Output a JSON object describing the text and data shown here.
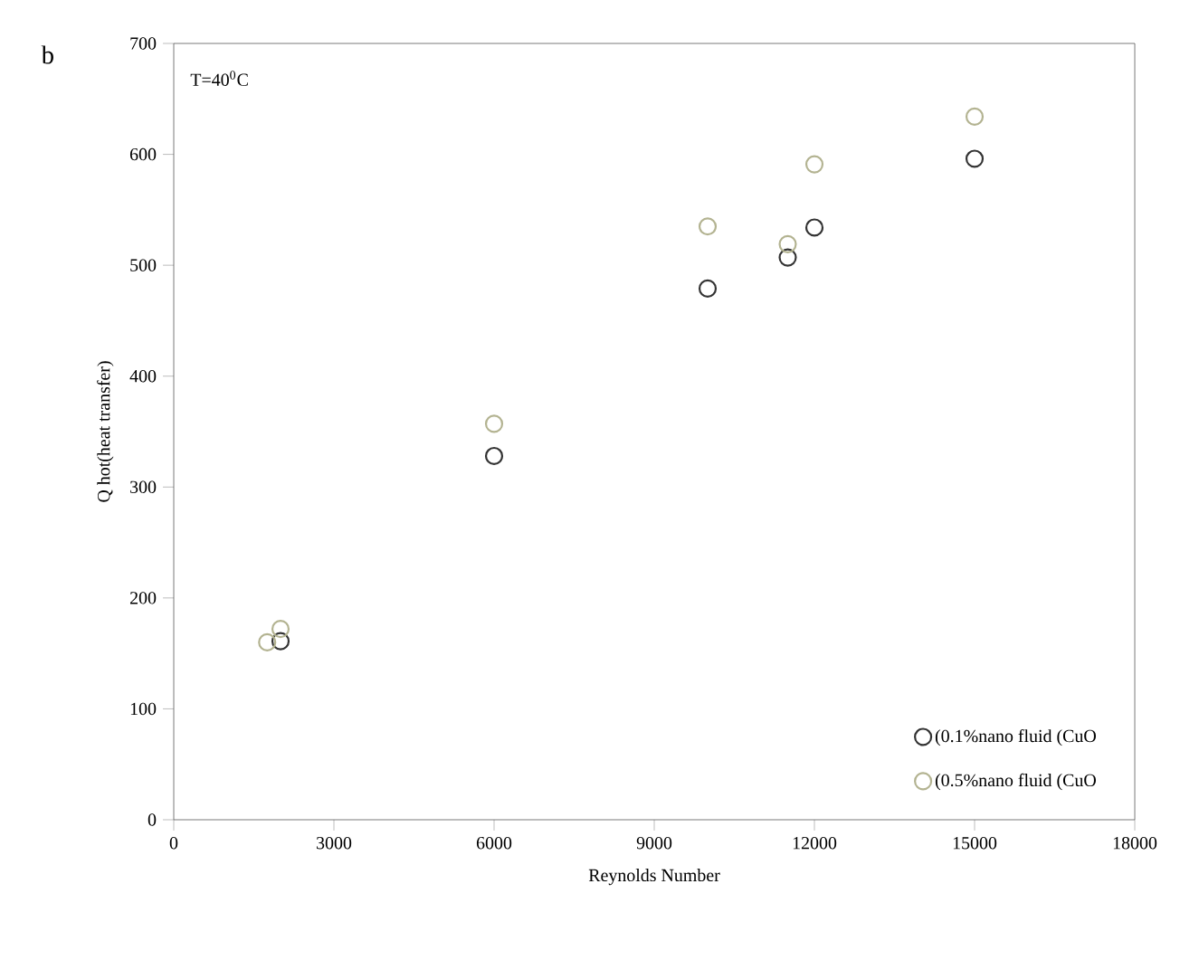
{
  "chart_data": {
    "type": "scatter",
    "xlabel": "Reynolds Number",
    "ylabel": "Q hot(heat transfer)",
    "annotations": [
      "b",
      "T=40$^{0}$C"
    ],
    "xlim": [
      0,
      18000
    ],
    "xticks": [
      0,
      3000,
      6000,
      9000,
      12000,
      15000,
      18000
    ],
    "ylim": [
      0,
      700
    ],
    "yticks": [
      0,
      100,
      200,
      300,
      400,
      500,
      600,
      700
    ],
    "marker": "circle",
    "legend": "bottom right",
    "grid": false,
    "series": [
      {
        "name": "(0.1%nano fluid (CuO",
        "color": "#333333",
        "x": [
          2000,
          6000,
          10000,
          11500,
          12000,
          15000
        ],
        "values": [
          161,
          328,
          479,
          507,
          534,
          596
        ]
      },
      {
        "name": "(0.5%nano fluid (CuO",
        "color": "#b3b391",
        "x": [
          1750,
          2000,
          6000,
          10000,
          11500,
          12000,
          15000
        ],
        "values": [
          160,
          172,
          357,
          535,
          519,
          591,
          634
        ]
      }
    ]
  }
}
